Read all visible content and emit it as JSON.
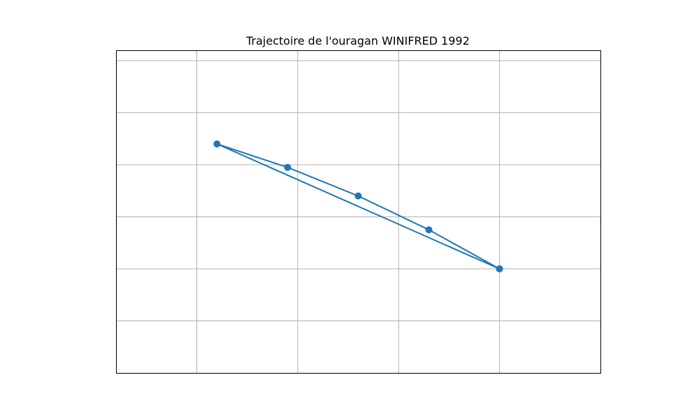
{
  "chart_data": {
    "type": "line",
    "title": "Trajectoire de l'ouragan WINIFRED 1992",
    "xlabel": "",
    "ylabel": "",
    "xlim": [
      -0.8,
      4
    ],
    "ylim": [
      -3,
      3.2
    ],
    "xticks": [
      0,
      1,
      2,
      3
    ],
    "yticks": [
      -2,
      -1,
      0,
      1,
      2,
      3
    ],
    "grid": true,
    "axes_labels_visible": false,
    "series": [
      {
        "color": "#1f77b4",
        "marker": "circle",
        "points": [
          {
            "x": 3,
            "y": -1
          },
          {
            "x": 2.3,
            "y": -0.25
          },
          {
            "x": 1.6,
            "y": 0.4
          },
          {
            "x": 0.9,
            "y": 0.95
          },
          {
            "x": 0.2,
            "y": 1.4
          },
          {
            "x": 3,
            "y": -1
          }
        ]
      }
    ]
  }
}
